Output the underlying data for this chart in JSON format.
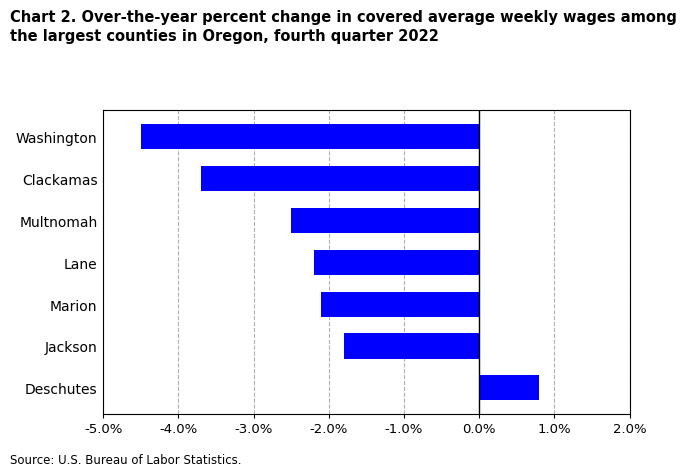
{
  "title": "Chart 2. Over-the-year percent change in covered average weekly wages among\nthe largest counties in Oregon, fourth quarter 2022",
  "categories": [
    "Deschutes",
    "Jackson",
    "Marion",
    "Lane",
    "Multnomah",
    "Clackamas",
    "Washington"
  ],
  "values": [
    0.8,
    -1.8,
    -2.1,
    -2.2,
    -2.5,
    -3.7,
    -4.5
  ],
  "bar_color": "#0000ff",
  "xlim": [
    -5.0,
    2.0
  ],
  "xticks": [
    -5.0,
    -4.0,
    -3.0,
    -2.0,
    -1.0,
    0.0,
    1.0,
    2.0
  ],
  "source": "Source: U.S. Bureau of Labor Statistics.",
  "background_color": "#ffffff",
  "grid_color": "#b0b0b0"
}
